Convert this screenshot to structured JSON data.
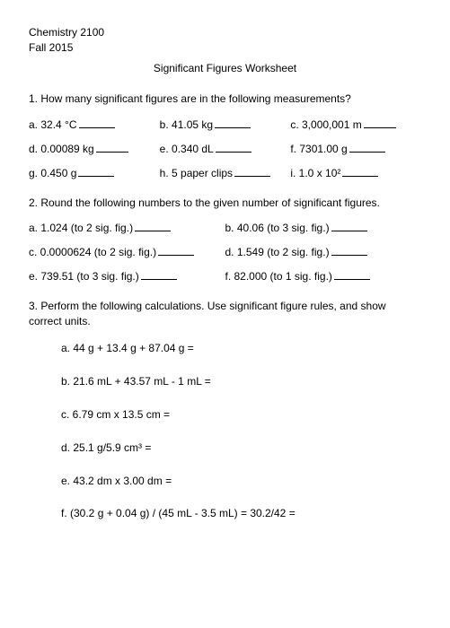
{
  "header": {
    "course": "Chemistry 2100",
    "term": "Fall 2015",
    "title": "Significant Figures Worksheet"
  },
  "q1": {
    "stem": "1.  How many significant figures are in the following measurements?",
    "a": "a.  32.4 °C",
    "b": "b.  41.05 kg",
    "c": "c.  3,000,001 m",
    "d": "d.  0.00089 kg",
    "e": "e.  0.340 dL",
    "f": "f.  7301.00 g",
    "g": "g.  0.450 g",
    "h": "h.  5 paper clips",
    "i": "i.  1.0 x 10²"
  },
  "q2": {
    "stem": "2.  Round the following numbers to the given number of significant figures.",
    "a": "a.  1.024 (to 2 sig. fig.)",
    "b": "b.  40.06 (to 3 sig. fig.)",
    "c": "c.  0.0000624 (to 2 sig. fig.)",
    "d": "d.  1.549 (to 2 sig. fig.)",
    "e": "e.  739.51 (to 3 sig. fig.)",
    "f": "f.  82.000 (to 1 sig. fig.)"
  },
  "q3": {
    "stem": "3.  Perform the following calculations.  Use significant figure rules, and show correct units.",
    "a": "a.  44 g + 13.4 g + 87.04 g =",
    "b": "b.  21.6 mL + 43.57 mL - 1 mL =",
    "c": "c.  6.79 cm x 13.5 cm =",
    "d": "d.  25.1 g/5.9 cm³ =",
    "e": "e.  43.2 dm x 3.00 dm =",
    "f": "f.  (30.2 g + 0.04 g) / (45 mL - 3.5 mL) = 30.2/42 ="
  }
}
